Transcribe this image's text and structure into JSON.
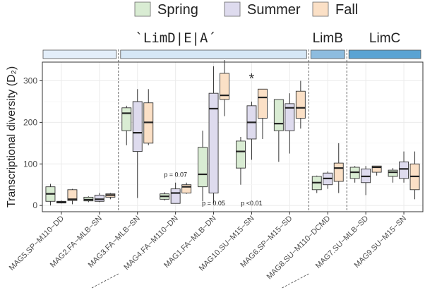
{
  "chart_data": {
    "type": "boxplot",
    "ylabel": "Transcriptional diversity (D₂)",
    "ylim": [
      -15,
      345
    ],
    "yticks": [
      0,
      100,
      200,
      300
    ],
    "grid": true,
    "legend_position": "top",
    "series": [
      {
        "name": "Spring",
        "color": "#d9ecd3"
      },
      {
        "name": "Summer",
        "color": "#dedbee"
      },
      {
        "name": "Fall",
        "color": "#fbe0c6"
      }
    ],
    "categories": [
      "MAG5.SP−M110−DD",
      "MAG2.FA−MLB−SN",
      "MAG3.FA−MLB−SN",
      "MAG4.FA−M110−DN",
      "MAG1.FA−MLB−DN",
      "MAG10.SU−M15−SN",
      "MAG6.SP−M15−SD",
      "MAG8.SU−M110−DCMD",
      "MAG7.SU−MLB−SD",
      "MAG9.SU−M15−SN"
    ],
    "groups": [
      {
        "label": "`LimD|E|A´",
        "from": 0,
        "to": 7,
        "strip_color": "#d6e7f6",
        "strip_split": 2,
        "strip_color_first": "#e3eefa"
      },
      {
        "label": "LimB",
        "from": 7,
        "to": 8,
        "strip_color": "#8dbcdf"
      },
      {
        "label": "LimC",
        "from": 8,
        "to": 10,
        "strip_color": "#5aa3d3"
      }
    ],
    "boxes": [
      [
        {
          "lo": 0,
          "q1": 10,
          "med": 28,
          "q3": 45,
          "hi": 52
        },
        {
          "lo": 5,
          "q1": 6,
          "med": 8,
          "q3": 10,
          "hi": 12
        },
        {
          "lo": 3,
          "q1": 12,
          "med": 15,
          "q3": 38,
          "hi": 40
        }
      ],
      [
        {
          "lo": 8,
          "q1": 11,
          "med": 14,
          "q3": 20,
          "hi": 22
        },
        {
          "lo": 8,
          "q1": 10,
          "med": 15,
          "q3": 25,
          "hi": 30
        },
        {
          "lo": 15,
          "q1": 20,
          "med": 25,
          "q3": 28,
          "hi": 30
        }
      ],
      [
        {
          "lo": 145,
          "q1": 180,
          "med": 222,
          "q3": 235,
          "hi": 240
        },
        {
          "lo": 18,
          "q1": 130,
          "med": 175,
          "q3": 250,
          "hi": 280
        },
        {
          "lo": 145,
          "q1": 150,
          "med": 200,
          "q3": 247,
          "hi": 280
        }
      ],
      [
        {
          "lo": 12,
          "q1": 15,
          "med": 22,
          "q3": 28,
          "hi": 32
        },
        {
          "lo": 5,
          "q1": 5,
          "med": 30,
          "q3": 40,
          "hi": 55
        },
        {
          "lo": 28,
          "q1": 30,
          "med": 45,
          "q3": 50,
          "hi": 55
        }
      ],
      [
        {
          "lo": 10,
          "q1": 45,
          "med": 75,
          "q3": 140,
          "hi": 180
        },
        {
          "lo": 5,
          "q1": 30,
          "med": 233,
          "q3": 270,
          "hi": 335
        },
        {
          "lo": 215,
          "q1": 255,
          "med": 265,
          "q3": 318,
          "hi": 350
        }
      ],
      [
        {
          "lo": 50,
          "q1": 90,
          "med": 130,
          "q3": 155,
          "hi": 165
        },
        {
          "lo": 110,
          "q1": 160,
          "med": 200,
          "q3": 240,
          "hi": 250
        },
        {
          "lo": 160,
          "q1": 210,
          "med": 260,
          "q3": 280,
          "hi": 280
        }
      ],
      [
        {
          "lo": 105,
          "q1": 180,
          "med": 197,
          "q3": 255,
          "hi": 255
        },
        {
          "lo": 125,
          "q1": 180,
          "med": 235,
          "q3": 245,
          "hi": 270
        },
        {
          "lo": 185,
          "q1": 210,
          "med": 235,
          "q3": 275,
          "hi": 300
        }
      ],
      [
        {
          "lo": 30,
          "q1": 38,
          "med": 55,
          "q3": 70,
          "hi": 72
        },
        {
          "lo": 40,
          "q1": 50,
          "med": 65,
          "q3": 78,
          "hi": 82
        },
        {
          "lo": 30,
          "q1": 58,
          "med": 90,
          "q3": 102,
          "hi": 150
        }
      ],
      [
        {
          "lo": 55,
          "q1": 65,
          "med": 80,
          "q3": 92,
          "hi": 95
        },
        {
          "lo": 25,
          "q1": 55,
          "med": 70,
          "q3": 88,
          "hi": 95
        },
        {
          "lo": 72,
          "q1": 80,
          "med": 92,
          "q3": 95,
          "hi": 95
        }
      ],
      [
        {
          "lo": 55,
          "q1": 70,
          "med": 80,
          "q3": 85,
          "hi": 90
        },
        {
          "lo": 55,
          "q1": 65,
          "med": 88,
          "q3": 105,
          "hi": 130
        },
        {
          "lo": 15,
          "q1": 38,
          "med": 70,
          "q3": 100,
          "hi": 130
        }
      ]
    ],
    "annotations": [
      {
        "text": "p = 0.07",
        "category": 3,
        "y": 74
      },
      {
        "text": "p = 0.05",
        "category": 4,
        "y": 5
      },
      {
        "text": "p <0.01",
        "category": 5,
        "y": 5
      },
      {
        "text": "*",
        "category": 5,
        "y": 318,
        "type": "star"
      }
    ]
  }
}
